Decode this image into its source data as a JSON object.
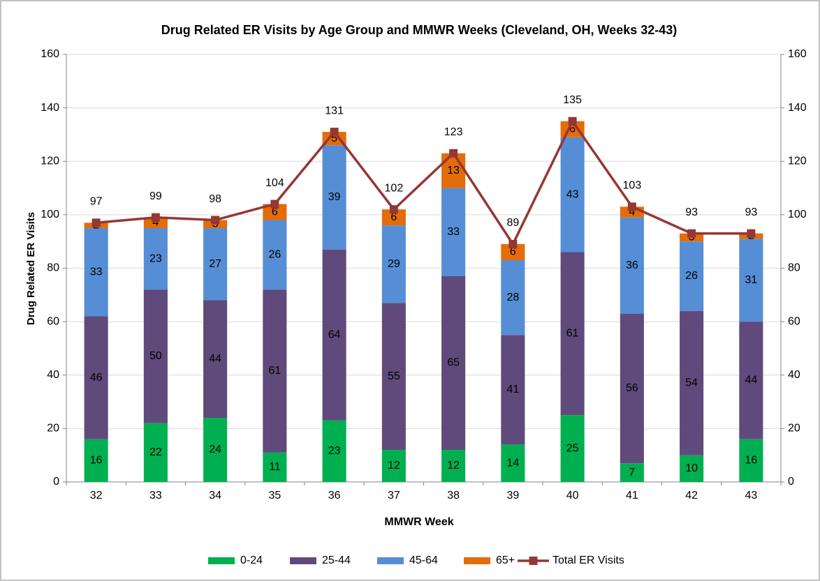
{
  "chart_data": {
    "type": "stacked-bar-line",
    "title": "Drug Related ER Visits by Age Group and MMWR Weeks (Cleveland, OH, Weeks 32-43)",
    "x_label": "MMWR Week",
    "y_label": "Drug Related ER Visits",
    "categories": [
      "32",
      "33",
      "34",
      "35",
      "36",
      "37",
      "38",
      "39",
      "40",
      "41",
      "42",
      "43"
    ],
    "series": [
      {
        "name": "0-24",
        "color": "#00b050",
        "values": [
          16,
          22,
          24,
          11,
          23,
          12,
          12,
          14,
          25,
          7,
          10,
          16
        ]
      },
      {
        "name": "25-44",
        "color": "#604a7b",
        "values": [
          46,
          50,
          44,
          61,
          64,
          55,
          65,
          41,
          61,
          56,
          54,
          44
        ]
      },
      {
        "name": "45-64",
        "color": "#558ed5",
        "values": [
          33,
          23,
          27,
          26,
          39,
          29,
          33,
          28,
          43,
          36,
          26,
          31
        ]
      },
      {
        "name": "65+",
        "color": "#e46c0a",
        "values": [
          2,
          4,
          3,
          6,
          5,
          6,
          13,
          6,
          6,
          4,
          3,
          2
        ]
      },
      {
        "name": "Total ER Visits",
        "color": "#953735",
        "type": "line",
        "axis": "y2",
        "values": [
          97,
          99,
          98,
          104,
          131,
          102,
          123,
          89,
          135,
          103,
          93,
          93
        ]
      }
    ],
    "ylim": [
      0,
      160
    ],
    "yticks": [
      0,
      20,
      40,
      60,
      80,
      100,
      120,
      140,
      160
    ],
    "y2lim": [
      0,
      160
    ],
    "y2ticks": [
      0,
      20,
      40,
      60,
      80,
      100,
      120,
      140,
      160
    ],
    "grid": true,
    "legend": "bottom"
  }
}
